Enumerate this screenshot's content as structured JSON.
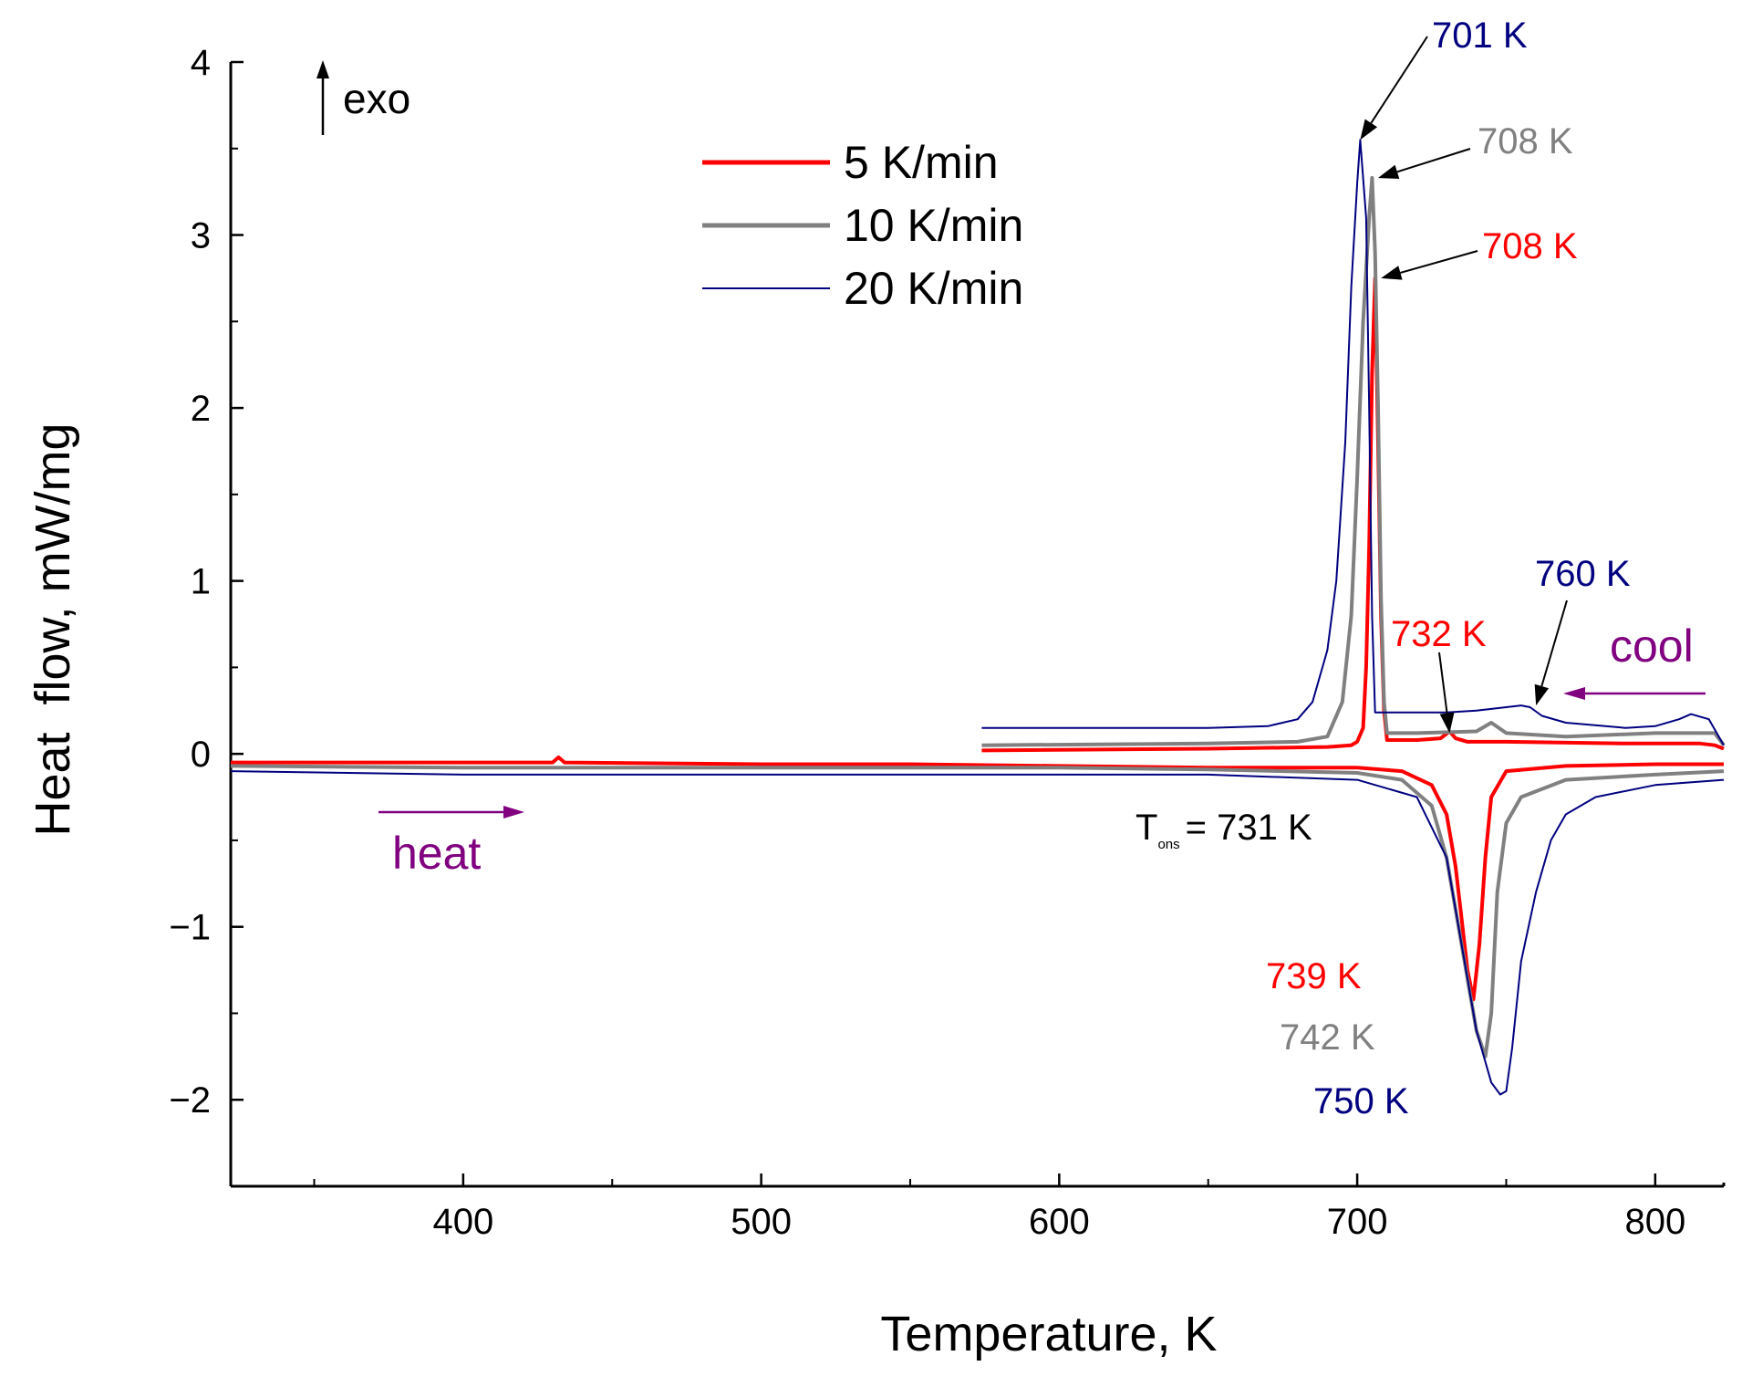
{
  "chart_data": {
    "type": "line",
    "title": "",
    "xlabel": "Temperature, K",
    "ylabel": "Heat  flow, mW/mg",
    "xlim": [
      322,
      823
    ],
    "ylim": [
      -2.5,
      4
    ],
    "xticks": [
      400,
      500,
      600,
      700,
      800
    ],
    "yticks": [
      -2,
      -1,
      0,
      1,
      2,
      3,
      4
    ],
    "ytick_labels": [
      "−2",
      "−1",
      "0",
      "1",
      "2",
      "3",
      "4"
    ],
    "grid": false,
    "legend_position": "top-center",
    "exo_label": "exo",
    "direction_labels": {
      "heat": "heat",
      "cool": "cool"
    },
    "onset_label": {
      "symbol": "T",
      "subscript": "ons",
      "text": "= 731 K"
    },
    "series": [
      {
        "name": "5 K/min",
        "color": "#ff0000",
        "segments": [
          {
            "part": "cooling",
            "x": [
              574,
              650,
              690,
              698,
              700,
              702,
              703,
              704,
              705,
              706,
              707,
              708,
              709,
              710,
              720,
              728,
              731,
              733,
              737,
              750,
              790,
              815,
              820,
              823
            ],
            "y": [
              0.02,
              0.03,
              0.04,
              0.05,
              0.07,
              0.15,
              0.5,
              1.2,
              2.2,
              2.75,
              1.8,
              0.8,
              0.25,
              0.08,
              0.08,
              0.09,
              0.13,
              0.09,
              0.07,
              0.07,
              0.06,
              0.06,
              0.05,
              0.03
            ]
          },
          {
            "part": "heating",
            "x": [
              322,
              430,
              432,
              434,
              500,
              550,
              600,
              650,
              700,
              715,
              725,
              730,
              733,
              735,
              737,
              739,
              741,
              743,
              745,
              750,
              770,
              800,
              823
            ],
            "y": [
              -0.05,
              -0.05,
              -0.02,
              -0.05,
              -0.06,
              -0.06,
              -0.07,
              -0.08,
              -0.08,
              -0.1,
              -0.18,
              -0.35,
              -0.65,
              -0.95,
              -1.25,
              -1.42,
              -1.1,
              -0.6,
              -0.25,
              -0.1,
              -0.07,
              -0.06,
              -0.06
            ]
          }
        ]
      },
      {
        "name": "10 K/min",
        "color": "#808080",
        "segments": [
          {
            "part": "cooling",
            "x": [
              574,
              650,
              680,
              690,
              695,
              698,
              700,
              702,
              704,
              705,
              706,
              707,
              708,
              709,
              710,
              720,
              740,
              745,
              750,
              770,
              800,
              820,
              823
            ],
            "y": [
              0.05,
              0.06,
              0.07,
              0.1,
              0.3,
              0.8,
              1.6,
              2.5,
              3.1,
              3.33,
              2.9,
              2.0,
              0.9,
              0.3,
              0.12,
              0.12,
              0.13,
              0.18,
              0.12,
              0.1,
              0.12,
              0.12,
              0.05
            ]
          },
          {
            "part": "heating",
            "x": [
              322,
              400,
              500,
              600,
              650,
              700,
              715,
              725,
              730,
              735,
              740,
              743,
              745,
              747,
              750,
              755,
              770,
              800,
              823
            ],
            "y": [
              -0.07,
              -0.08,
              -0.08,
              -0.08,
              -0.09,
              -0.11,
              -0.15,
              -0.3,
              -0.6,
              -1.1,
              -1.6,
              -1.75,
              -1.5,
              -0.8,
              -0.4,
              -0.25,
              -0.15,
              -0.12,
              -0.1
            ]
          }
        ]
      },
      {
        "name": "20 K/min",
        "color": "#000080",
        "segments": [
          {
            "part": "cooling",
            "x": [
              574,
              650,
              670,
              680,
              685,
              690,
              693,
              696,
              698,
              700,
              701,
              703,
              704,
              705,
              706,
              730,
              740,
              750,
              755,
              758,
              762,
              770,
              790,
              800,
              808,
              812,
              818,
              823
            ],
            "y": [
              0.15,
              0.15,
              0.16,
              0.2,
              0.3,
              0.6,
              1.0,
              1.8,
              2.7,
              3.3,
              3.55,
              3.1,
              2.0,
              0.8,
              0.24,
              0.24,
              0.25,
              0.27,
              0.28,
              0.27,
              0.22,
              0.18,
              0.15,
              0.16,
              0.2,
              0.23,
              0.2,
              0.05
            ]
          },
          {
            "part": "heating",
            "x": [
              322,
              400,
              500,
              600,
              650,
              700,
              720,
              730,
              735,
              740,
              745,
              748,
              750,
              752,
              755,
              760,
              765,
              770,
              780,
              800,
              823
            ],
            "y": [
              -0.1,
              -0.12,
              -0.12,
              -0.12,
              -0.12,
              -0.15,
              -0.25,
              -0.6,
              -1.1,
              -1.6,
              -1.9,
              -1.97,
              -1.95,
              -1.7,
              -1.2,
              -0.8,
              -0.5,
              -0.35,
              -0.25,
              -0.18,
              -0.15
            ]
          }
        ]
      }
    ],
    "annotations": [
      {
        "text": "701 K",
        "color": "#000080",
        "tx": 701,
        "ty": 3.55
      },
      {
        "text": "708 K",
        "color": "#808080",
        "tx": 707,
        "ty": 3.33
      },
      {
        "text": "708 K",
        "color": "#ff0000",
        "tx": 708,
        "ty": 2.75
      },
      {
        "text": "732 K",
        "color": "#ff0000",
        "tx": 731,
        "ty": 0.12
      },
      {
        "text": "760 K",
        "color": "#000080",
        "tx": 760,
        "ty": 0.28
      },
      {
        "text": "739 K",
        "color": "#ff0000"
      },
      {
        "text": "742 K",
        "color": "#808080"
      },
      {
        "text": "750 K",
        "color": "#000080"
      }
    ]
  }
}
